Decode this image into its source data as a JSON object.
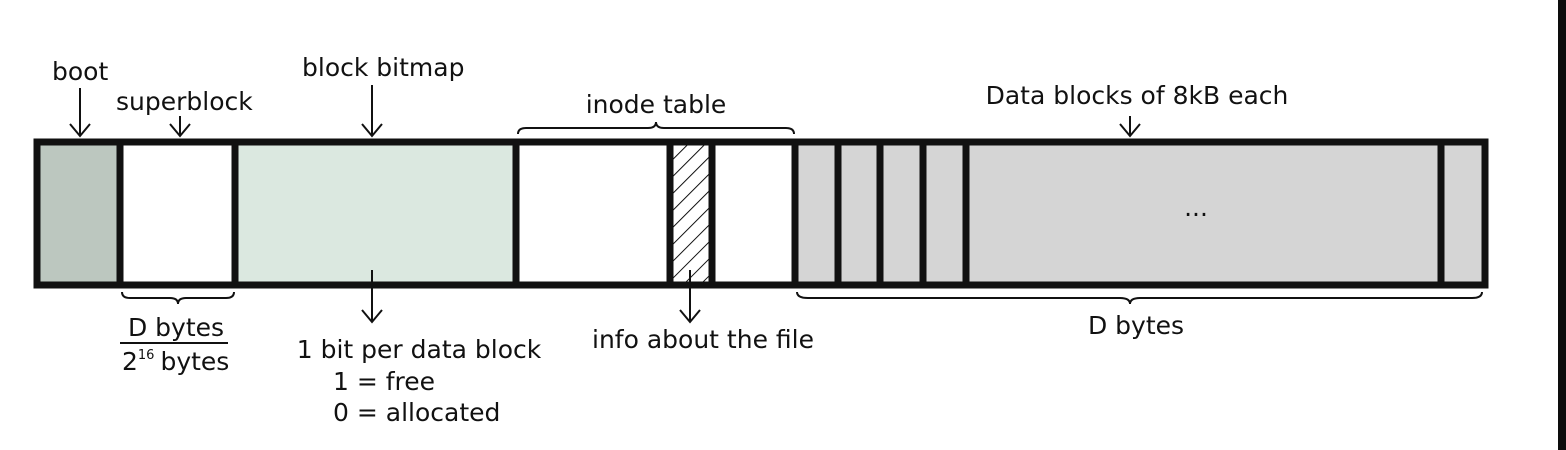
{
  "labels": {
    "boot": "boot",
    "superblock": "superblock",
    "block_bitmap": "block bitmap",
    "inode_table": "inode table",
    "data_blocks": "Data blocks of 8kB each",
    "ellipsis": "...",
    "superblock_size_numerator": "D bytes",
    "superblock_size_denominator_base": "2",
    "superblock_size_denominator_exp": "16",
    "superblock_size_denominator_unit": "bytes",
    "bitmap_note_line1": "1 bit per data block",
    "bitmap_note_line2": "1 = free",
    "bitmap_note_line3": "0 = allocated",
    "inode_note": "info about the file",
    "data_size": "D bytes"
  },
  "colors": {
    "boot_fill": "#bcc7bf",
    "bitmap_fill": "#dbe8e0",
    "data_fill": "#d5d5d5",
    "plain_fill": "#ffffff",
    "outline": "#111111"
  }
}
